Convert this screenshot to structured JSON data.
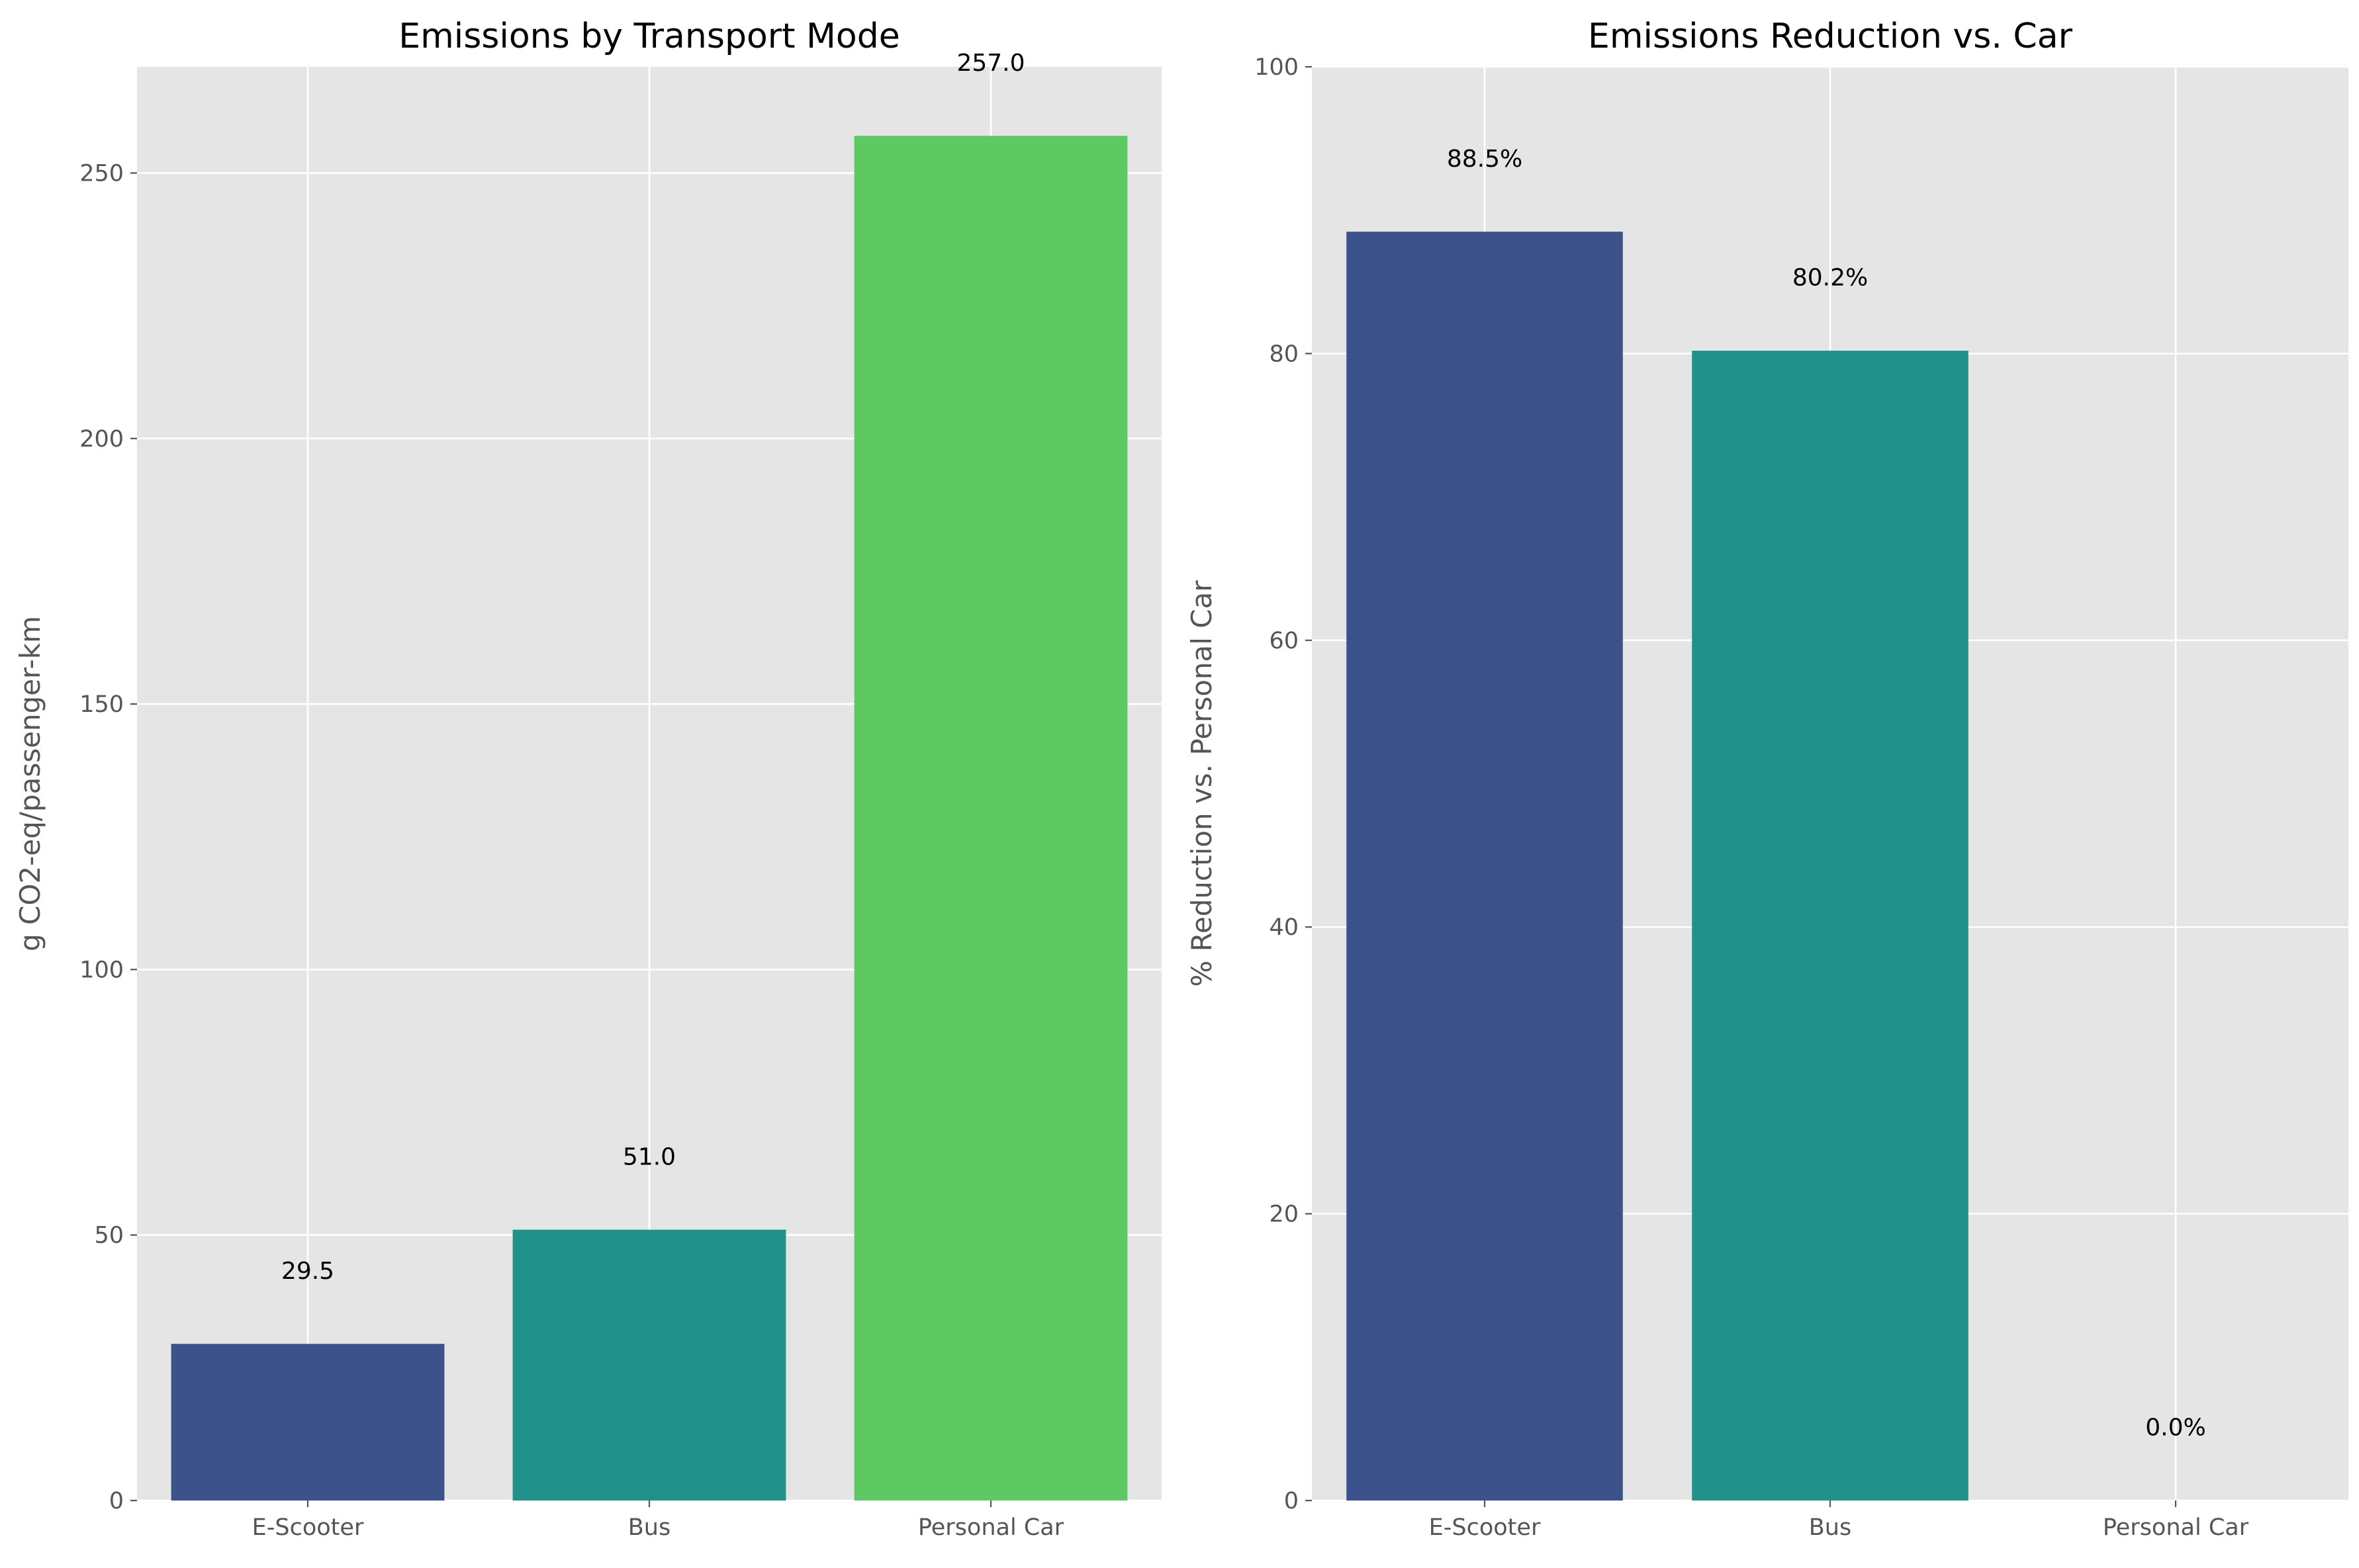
{
  "chart_data": [
    {
      "type": "bar",
      "title": "Emissions by Transport Mode",
      "xlabel": "",
      "ylabel": "g CO2-eq/passenger-km",
      "categories": [
        "E-Scooter",
        "Bus",
        "Personal Car"
      ],
      "values": [
        29.5,
        51.0,
        257.0
      ],
      "data_labels": [
        "29.5",
        "51.0",
        "257.0"
      ],
      "colors": [
        "#3b528b",
        "#21918c",
        "#5ec962"
      ],
      "ylim": [
        0,
        270
      ],
      "yticks": [
        0,
        50,
        100,
        150,
        200,
        250
      ],
      "ytick_labels": [
        "0",
        "50",
        "100",
        "150",
        "200",
        "250"
      ],
      "grid": true,
      "legend": "none"
    },
    {
      "type": "bar",
      "title": "Emissions Reduction vs. Car",
      "xlabel": "",
      "ylabel": "% Reduction vs. Personal Car",
      "categories": [
        "E-Scooter",
        "Bus",
        "Personal Car"
      ],
      "values": [
        88.5,
        80.2,
        0.0
      ],
      "data_labels": [
        "88.5%",
        "80.2%",
        "0.0%"
      ],
      "colors": [
        "#3b528b",
        "#21918c",
        "#5ec962"
      ],
      "ylim": [
        0,
        100
      ],
      "yticks": [
        0,
        20,
        40,
        60,
        80,
        100
      ],
      "ytick_labels": [
        "0",
        "20",
        "40",
        "60",
        "80",
        "100"
      ],
      "grid": true,
      "legend": "none"
    }
  ]
}
